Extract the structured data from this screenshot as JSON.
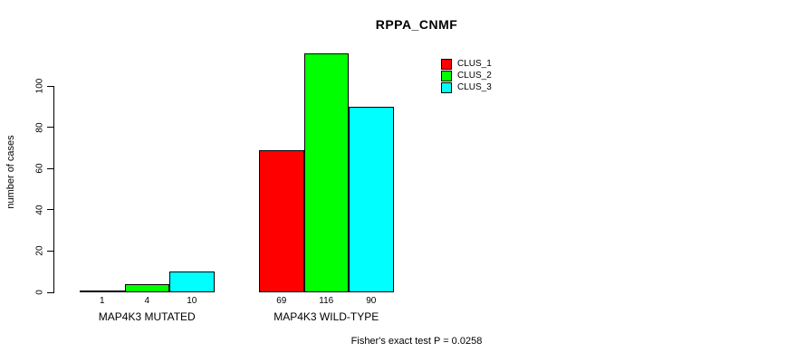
{
  "chart_data": {
    "type": "bar",
    "title": "RPPA_CNMF",
    "ylabel": "number of cases",
    "xlabel": "",
    "categories": [
      "MAP4K3 MUTATED",
      "MAP4K3 WILD-TYPE"
    ],
    "series": [
      {
        "name": "CLUS_1",
        "color": "#FF0000",
        "values": [
          1,
          69
        ]
      },
      {
        "name": "CLUS_2",
        "color": "#00FF00",
        "values": [
          4,
          116
        ]
      },
      {
        "name": "CLUS_3",
        "color": "#00FFFF",
        "values": [
          10,
          90
        ]
      }
    ],
    "yticks": [
      0,
      20,
      40,
      60,
      80,
      100
    ],
    "ylim": [
      0,
      116
    ],
    "grid": false,
    "bar_value_labels_shown": true,
    "legend_position": "top-right",
    "bar_border_color": "#000000",
    "annotation": "Fisher's exact test P = 0.0258"
  }
}
